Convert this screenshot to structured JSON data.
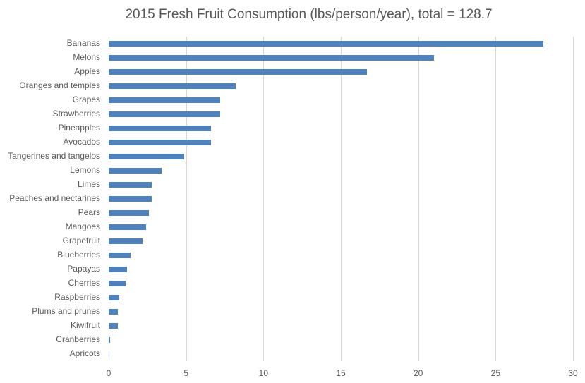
{
  "chart_data": {
    "type": "bar",
    "orientation": "horizontal",
    "title": "2015 Fresh Fruit Consumption (lbs/person/year), total = 128.7",
    "xlabel": "",
    "ylabel": "",
    "xlim": [
      0,
      30
    ],
    "xticks": [
      0,
      5,
      10,
      15,
      20,
      25,
      30
    ],
    "grid": true,
    "legend": null,
    "bar_color": "#4f81bd",
    "categories": [
      "Bananas",
      "Melons",
      "Apples",
      "Oranges and temples",
      "Grapes",
      "Strawberries",
      "Pineapples",
      "Avocados",
      "Tangerines and tangelos",
      "Lemons",
      "Limes",
      "Peaches and nectarines",
      "Pears",
      "Mangoes",
      "Grapefruit",
      "Blueberries",
      "Papayas",
      "Cherries",
      "Raspberries",
      "Plums and prunes",
      "Kiwifruit",
      "Cranberries",
      "Apricots"
    ],
    "values": [
      28.1,
      21.0,
      16.7,
      8.2,
      7.2,
      7.2,
      6.6,
      6.6,
      4.9,
      3.4,
      2.8,
      2.8,
      2.6,
      2.4,
      2.2,
      1.4,
      1.2,
      1.1,
      0.7,
      0.6,
      0.6,
      0.1,
      0.05
    ]
  }
}
